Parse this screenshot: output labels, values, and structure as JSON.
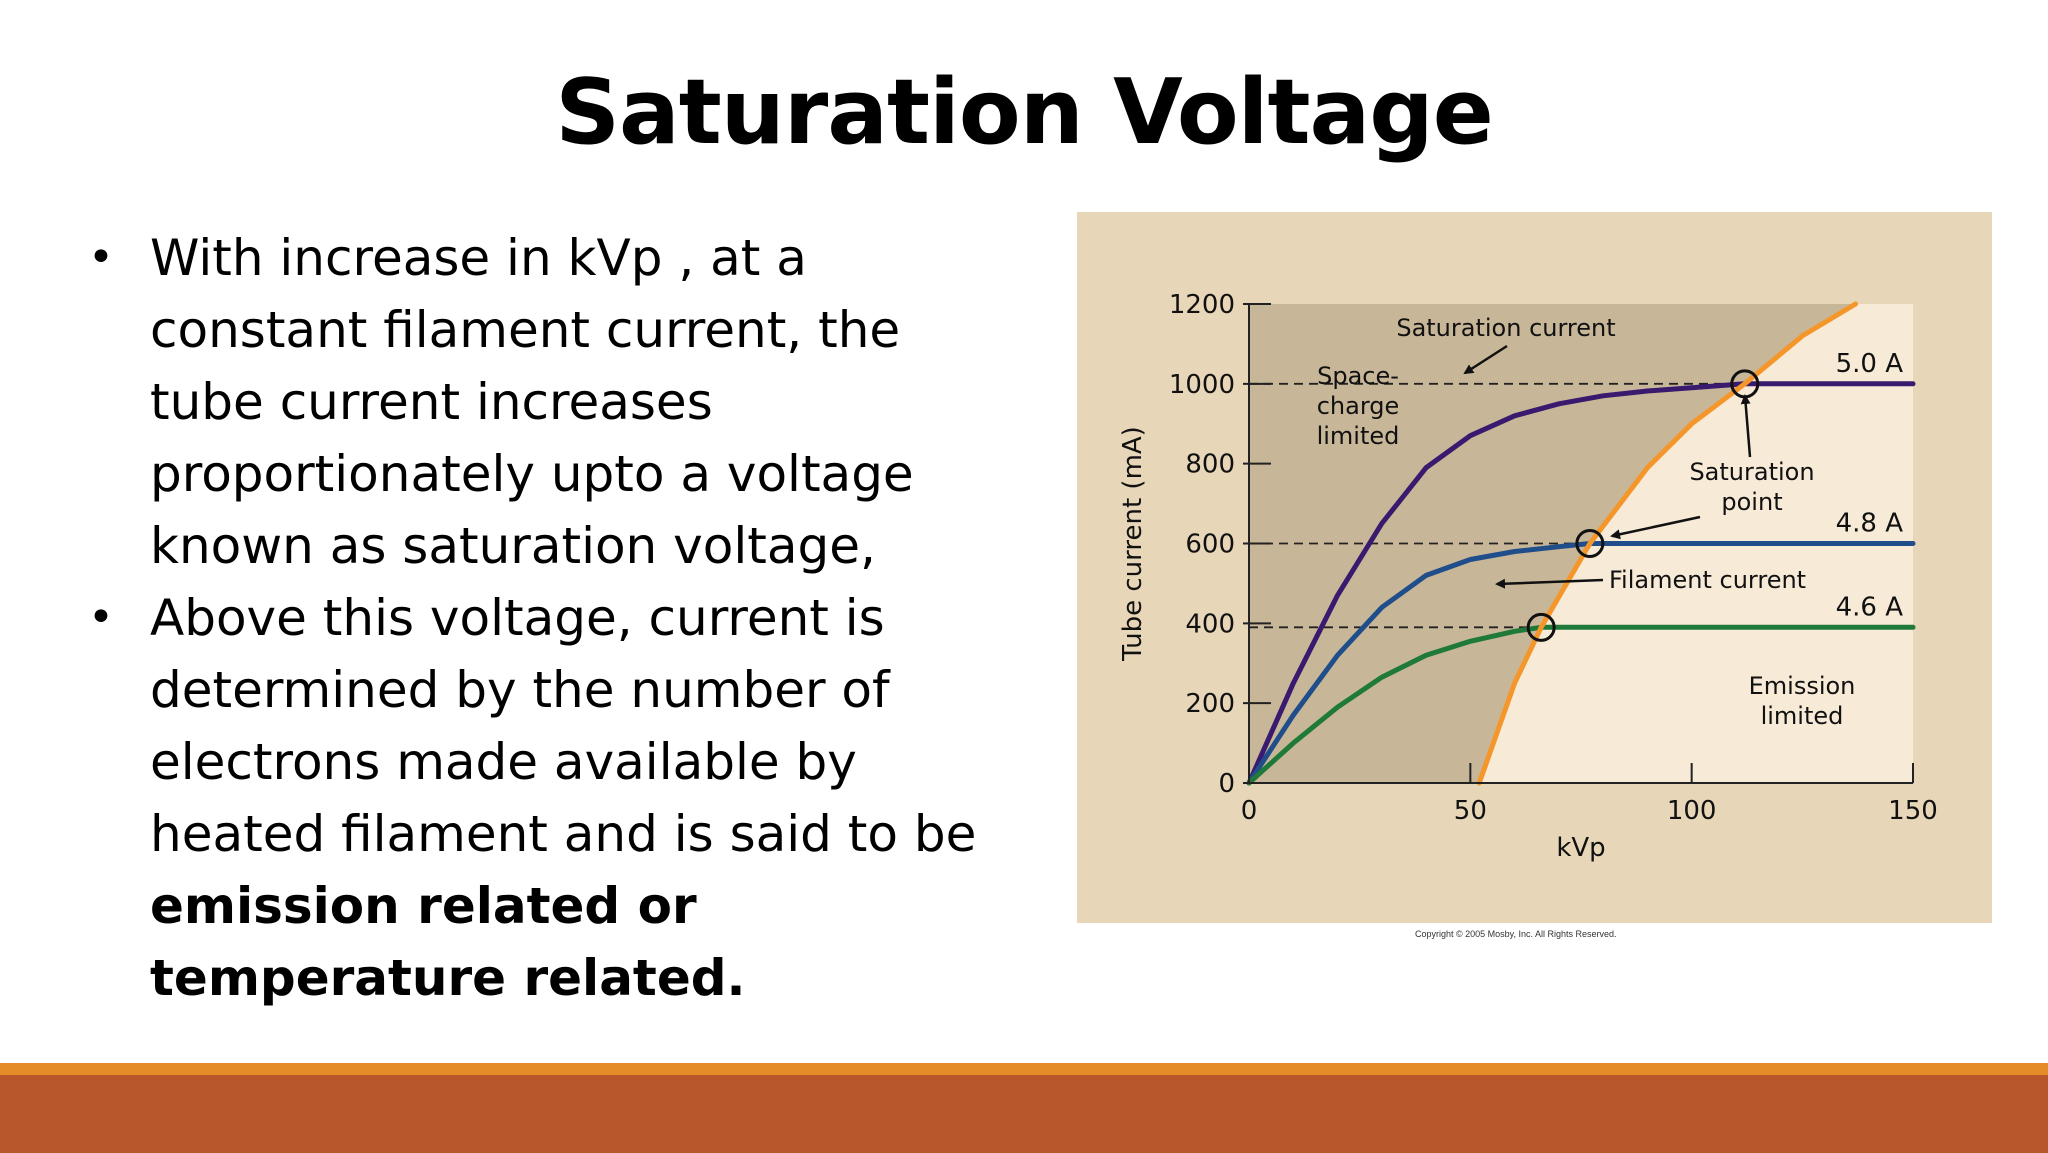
{
  "slide": {
    "title": "Saturation Voltage",
    "bullet1": "With increase in kVp , at a constant filament current, the tube current increases proportionately upto a voltage known as saturation voltage,",
    "bullet2_text": "Above this voltage, current is determined by the number of electrons made available by heated filament and is said to be ",
    "bullet2_bold": "emission related or temperature related.",
    "copyright": "Copyright © 2005 Mosby, Inc. All Rights Reserved.",
    "colors": {
      "accent_thin": "#e58c28",
      "accent_thick": "#b8562c",
      "figure_bg": "#e8d6b8"
    }
  },
  "chart_data": {
    "type": "line",
    "title": "",
    "xlabel": "kVp",
    "ylabel": "Tube current (mA)",
    "xlim": [
      0,
      150
    ],
    "ylim": [
      0,
      1200
    ],
    "x_ticks": [
      0,
      50,
      100,
      150
    ],
    "y_ticks": [
      0,
      200,
      400,
      600,
      800,
      1000,
      1200
    ],
    "series": [
      {
        "name": "5.0 A",
        "color": "#3a1a6e",
        "x": [
          0,
          10,
          20,
          30,
          40,
          50,
          60,
          70,
          80,
          90,
          100,
          112,
          120,
          130,
          150
        ],
        "y": [
          0,
          250,
          470,
          650,
          790,
          870,
          920,
          950,
          970,
          982,
          990,
          1000,
          1000,
          1000,
          1000
        ]
      },
      {
        "name": "4.8 A",
        "color": "#1f4e8a",
        "x": [
          0,
          10,
          20,
          30,
          40,
          50,
          60,
          70,
          77,
          90,
          110,
          130,
          150
        ],
        "y": [
          0,
          170,
          320,
          440,
          520,
          560,
          580,
          592,
          600,
          600,
          600,
          600,
          600
        ]
      },
      {
        "name": "4.6 A",
        "color": "#1f7a3a",
        "x": [
          0,
          10,
          20,
          30,
          40,
          50,
          60,
          66,
          80,
          100,
          120,
          150
        ],
        "y": [
          0,
          100,
          190,
          265,
          320,
          355,
          380,
          390,
          390,
          390,
          390,
          390
        ]
      },
      {
        "name": "Saturation point locus",
        "color": "#f5962a",
        "x": [
          52,
          60,
          66,
          77,
          90,
          100,
          112,
          125,
          137
        ],
        "y": [
          0,
          250,
          390,
          600,
          790,
          900,
          1000,
          1120,
          1200
        ]
      }
    ],
    "saturation_points": [
      {
        "x": 66,
        "y": 390
      },
      {
        "x": 77,
        "y": 600
      },
      {
        "x": 112,
        "y": 1000
      }
    ],
    "annotations": {
      "saturation_current": "Saturation current",
      "space_charge_1": "Space-",
      "space_charge_2": "charge",
      "space_charge_3": "limited",
      "saturation_point_1": "Saturation",
      "saturation_point_2": "point",
      "filament_current": "Filament current",
      "emission_1": "Emission",
      "emission_2": "limited"
    },
    "grid": false,
    "legend": "inline-labels"
  }
}
